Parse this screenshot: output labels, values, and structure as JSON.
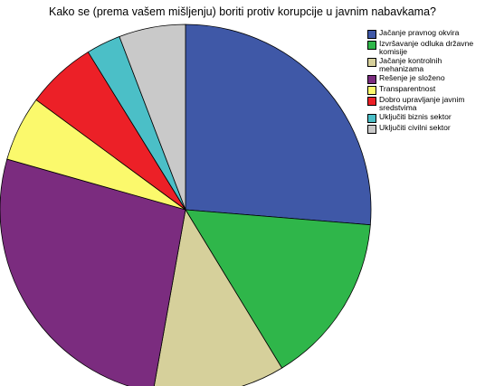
{
  "chart_data": {
    "type": "pie",
    "title": "Kako se (prema vašem mišljenju) boriti protiv korupcije u javnim nabavkama?",
    "categories": [
      "Jačanje pravnog okvira",
      "Izvršavanje odluka državne komisije",
      "Jačanje kontrolnih mehanizama",
      "Rešenje je složeno",
      "Transparentnost",
      "Dobro upravljanje javnim sredstvima",
      "Uključiti biznis sektor",
      "Uključiti civilni sektor"
    ],
    "values": [
      26.3,
      15,
      11.5,
      26.6,
      5.7,
      6.1,
      3.0,
      5.8
    ],
    "colors": [
      "#3f58a7",
      "#2fb64a",
      "#d6d09b",
      "#7b2c7f",
      "#fbf96c",
      "#ec2027",
      "#4bbfc7",
      "#c9c9c9"
    ],
    "legend": "right"
  }
}
